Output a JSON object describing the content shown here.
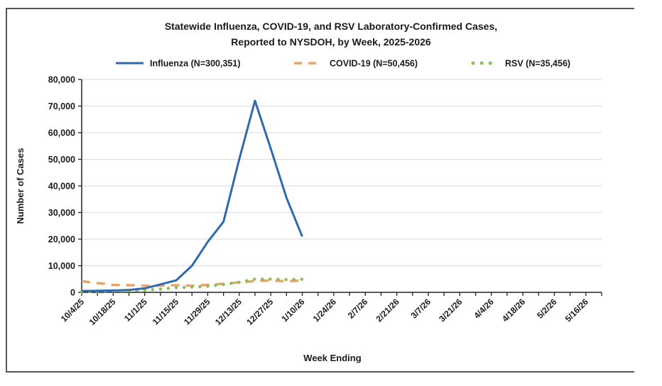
{
  "chart_data": {
    "type": "line",
    "title_line1": "Statewide Influenza, COVID-19, and RSV Laboratory-Confirmed  Cases,",
    "title_line2": "Reported to NYSDOH, by Week, 2025-2026",
    "xlabel": "Week Ending",
    "ylabel": "Number of Cases",
    "ylim": [
      0,
      80000
    ],
    "y_ticks": [
      "0",
      "10,000",
      "20,000",
      "30,000",
      "40,000",
      "50,000",
      "60,000",
      "70,000",
      "80,000"
    ],
    "x_tick_labels": [
      "10/4/25",
      "10/18/25",
      "11/1/25",
      "11/15/25",
      "11/29/25",
      "12/13/25",
      "12/27/25",
      "1/10/26",
      "1/24/26",
      "2/7/26",
      "2/21/26",
      "3/7/26",
      "3/21/26",
      "4/4/26",
      "4/18/26",
      "5/2/26",
      "5/16/26"
    ],
    "n_weeks": 34,
    "grid": true,
    "legend_position": "top",
    "series": [
      {
        "name": "Influenza (N=300,351)",
        "color": "#2e6aad",
        "style": "solid",
        "values": [
          500,
          600,
          700,
          900,
          1500,
          3000,
          4500,
          10000,
          19000,
          26500,
          50000,
          72000,
          54000,
          35500,
          21000
        ]
      },
      {
        "name": "COVID-19 (N=50,456)",
        "color": "#e8a56a",
        "style": "dashed",
        "values": [
          4200,
          3500,
          2800,
          2700,
          2500,
          2500,
          2700,
          2500,
          2800,
          3200,
          3800,
          4200,
          4500,
          4100,
          4500
        ]
      },
      {
        "name": "RSV (N=35,456)",
        "color": "#8cc152",
        "style": "dotted",
        "values": [
          300,
          400,
          500,
          600,
          800,
          1200,
          1800,
          2000,
          2300,
          3000,
          3800,
          5000,
          5000,
          4800,
          4900
        ]
      }
    ]
  }
}
